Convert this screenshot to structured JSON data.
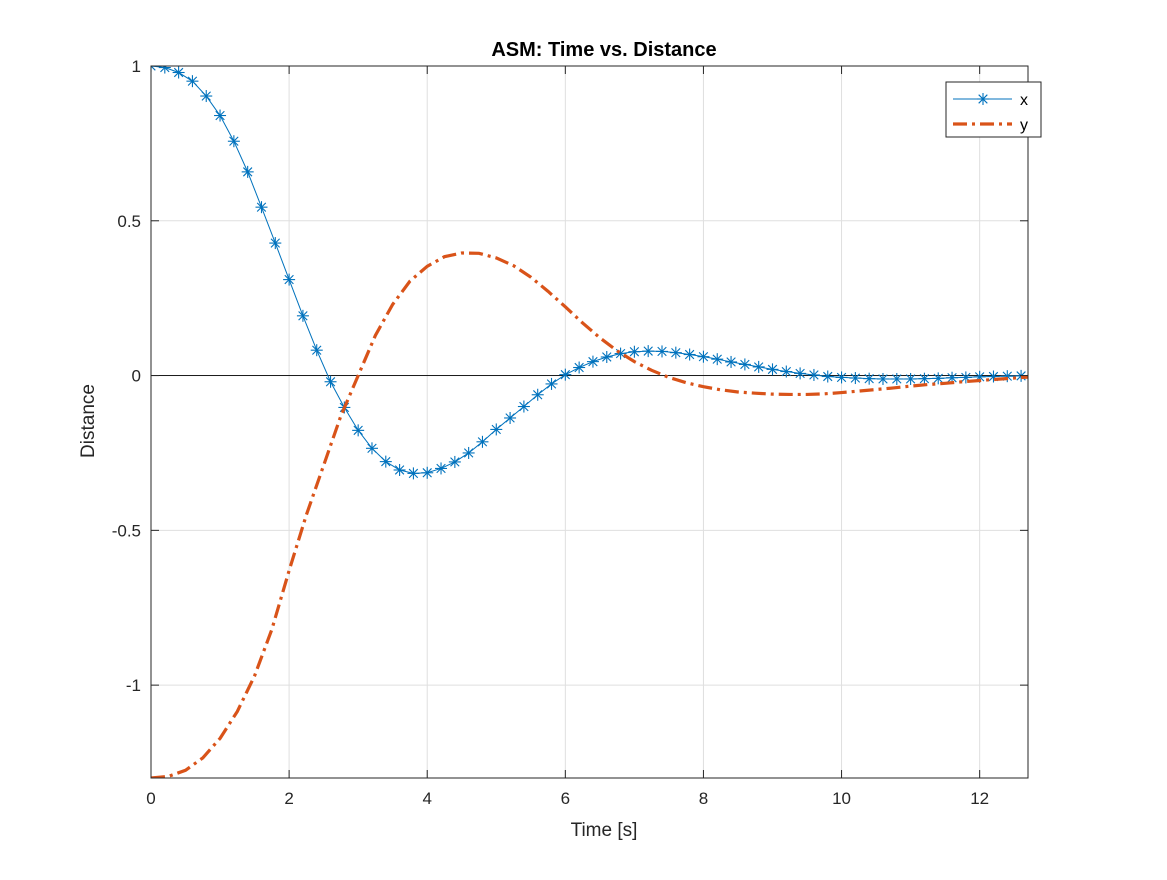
{
  "chart_data": {
    "type": "line",
    "title": "ASM: Time vs. Distance",
    "xlabel": "Time [s]",
    "ylabel": "Distance",
    "xlim": [
      0,
      12.7
    ],
    "ylim": [
      -1.3,
      1.0
    ],
    "xticks": [
      0,
      2,
      4,
      6,
      8,
      10,
      12
    ],
    "xtick_labels": [
      "0",
      "2",
      "4",
      "6",
      "8",
      "10",
      "12"
    ],
    "yticks": [
      -1,
      -0.5,
      0,
      0.5,
      1
    ],
    "ytick_labels": [
      "-1",
      "-0.5",
      "0",
      "0.5",
      "1"
    ],
    "grid": true,
    "zero_line": true,
    "legend_location": "top-right",
    "series": [
      {
        "name": "x",
        "color": "#0072BD",
        "line_style": "solid",
        "marker": "asterisk",
        "x": [
          0,
          0.2,
          0.4,
          0.6,
          0.8,
          1.0,
          1.2,
          1.4,
          1.6,
          1.8,
          2.0,
          2.2,
          2.4,
          2.6,
          2.8,
          3.0,
          3.2,
          3.4,
          3.6,
          3.8,
          4.0,
          4.2,
          4.4,
          4.6,
          4.8,
          5.0,
          5.2,
          5.4,
          5.6,
          5.8,
          6.0,
          6.2,
          6.4,
          6.6,
          6.8,
          7.0,
          7.2,
          7.4,
          7.6,
          7.8,
          8.0,
          8.2,
          8.4,
          8.6,
          8.8,
          9.0,
          9.2,
          9.4,
          9.6,
          9.8,
          10.0,
          10.2,
          10.4,
          10.6,
          10.8,
          11.0,
          11.2,
          11.4,
          11.6,
          11.8,
          12.0,
          12.2,
          12.4,
          12.6
        ],
        "values": [
          1.0,
          0.995,
          0.979,
          0.951,
          0.903,
          0.84,
          0.757,
          0.658,
          0.544,
          0.428,
          0.31,
          0.193,
          0.082,
          -0.02,
          -0.103,
          -0.177,
          -0.235,
          -0.278,
          -0.305,
          -0.316,
          -0.314,
          -0.3,
          -0.279,
          -0.25,
          -0.214,
          -0.174,
          -0.137,
          -0.1,
          -0.062,
          -0.027,
          0.003,
          0.026,
          0.045,
          0.06,
          0.071,
          0.077,
          0.079,
          0.078,
          0.074,
          0.068,
          0.061,
          0.053,
          0.044,
          0.036,
          0.028,
          0.02,
          0.013,
          0.007,
          0.002,
          -0.003,
          -0.006,
          -0.008,
          -0.01,
          -0.011,
          -0.011,
          -0.011,
          -0.01,
          -0.009,
          -0.007,
          -0.006,
          -0.004,
          -0.003,
          -0.002,
          -0.001
        ]
      },
      {
        "name": "y",
        "color": "#D95319",
        "line_style": "dash-dot",
        "marker": "none",
        "x": [
          0,
          0.25,
          0.5,
          0.75,
          1.0,
          1.25,
          1.5,
          1.75,
          2.0,
          2.25,
          2.5,
          2.75,
          3.0,
          3.25,
          3.5,
          3.75,
          4.0,
          4.25,
          4.5,
          4.75,
          5.0,
          5.25,
          5.5,
          5.75,
          6.0,
          6.25,
          6.5,
          6.75,
          7.0,
          7.25,
          7.5,
          7.75,
          8.0,
          8.25,
          8.5,
          8.75,
          9.0,
          9.25,
          9.5,
          9.75,
          10.0,
          10.25,
          10.5,
          10.75,
          11.0,
          11.25,
          11.5,
          11.75,
          12.0,
          12.25,
          12.5,
          12.7
        ],
        "values": [
          -1.3,
          -1.295,
          -1.275,
          -1.235,
          -1.172,
          -1.085,
          -0.97,
          -0.82,
          -0.63,
          -0.45,
          -0.29,
          -0.13,
          0.0,
          0.13,
          0.23,
          0.305,
          0.353,
          0.384,
          0.396,
          0.395,
          0.38,
          0.355,
          0.318,
          0.272,
          0.222,
          0.17,
          0.122,
          0.08,
          0.045,
          0.017,
          -0.006,
          -0.023,
          -0.036,
          -0.046,
          -0.053,
          -0.057,
          -0.06,
          -0.061,
          -0.061,
          -0.059,
          -0.055,
          -0.05,
          -0.045,
          -0.04,
          -0.034,
          -0.029,
          -0.025,
          -0.02,
          -0.016,
          -0.012,
          -0.008,
          -0.005
        ]
      }
    ]
  }
}
